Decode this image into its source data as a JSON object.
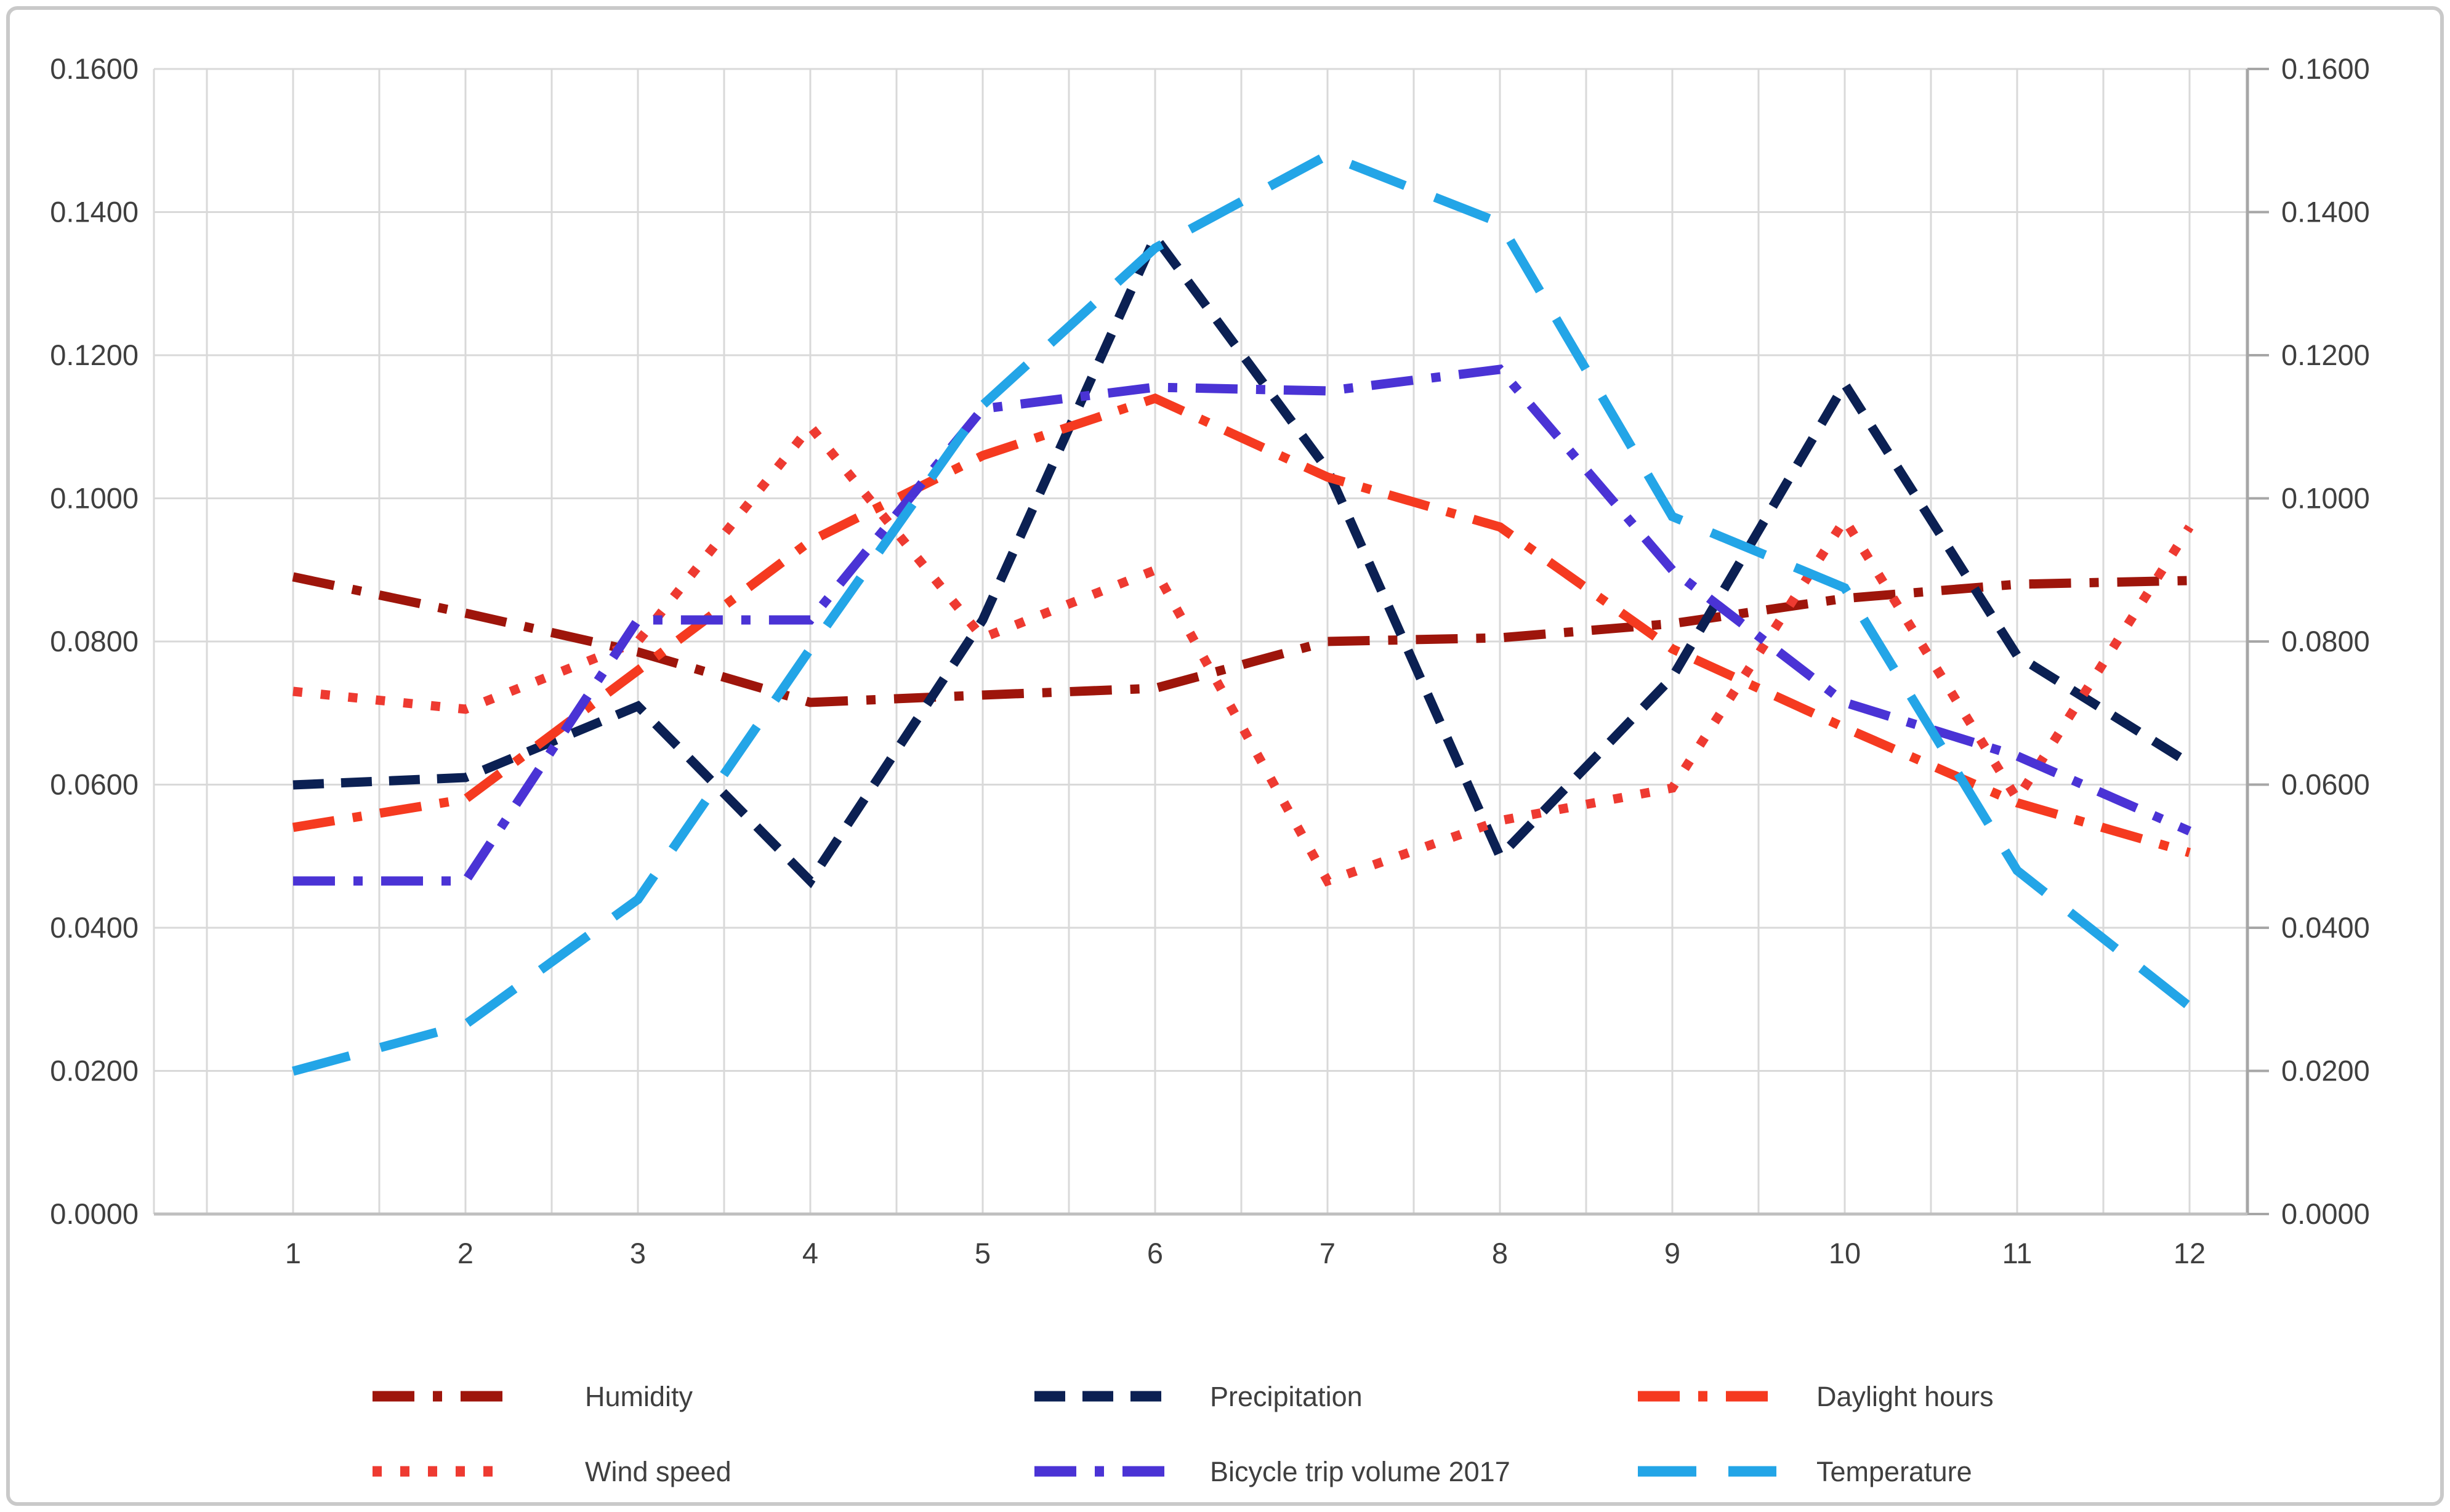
{
  "chart_data": {
    "type": "line",
    "title": "",
    "xlabel": "",
    "ylabel": "",
    "x": [
      1,
      2,
      3,
      4,
      5,
      6,
      7,
      8,
      9,
      10,
      11,
      12
    ],
    "x_tick_labels": [
      "1",
      "2",
      "3",
      "4",
      "5",
      "6",
      "7",
      "8",
      "9",
      "10",
      "11",
      "12"
    ],
    "y_axis": {
      "min": 0.0,
      "max": 0.16,
      "tick_step": 0.02,
      "tick_labels": [
        "0.0000",
        "0.0200",
        "0.0400",
        "0.0600",
        "0.0800",
        "0.1000",
        "0.1200",
        "0.1400",
        "0.1600"
      ],
      "sides": [
        "left",
        "right"
      ],
      "grid": true
    },
    "minor_vertical_grid_per_month": 2,
    "series": [
      {
        "name": "Humidity",
        "color": "#9e150b",
        "dash_style": "long-dash-dot",
        "values": [
          0.089,
          0.084,
          0.0785,
          0.0715,
          0.0725,
          0.0735,
          0.08,
          0.0805,
          0.0825,
          0.086,
          0.088,
          0.0885
        ]
      },
      {
        "name": "Precipitation",
        "color": "#0b2053",
        "dash_style": "dash",
        "values": [
          0.06,
          0.061,
          0.071,
          0.0465,
          0.083,
          0.1365,
          0.104,
          0.05,
          0.075,
          0.116,
          0.078,
          0.063
        ]
      },
      {
        "name": "Daylight hours",
        "color": "#f53a20",
        "dash_style": "long-dash-dot",
        "values": [
          0.054,
          0.058,
          0.076,
          0.094,
          0.106,
          0.114,
          0.103,
          0.096,
          0.079,
          0.068,
          0.0575,
          0.0505
        ]
      },
      {
        "name": "Wind speed",
        "color": "#ee3a31",
        "dash_style": "dot",
        "values": [
          0.073,
          0.0705,
          0.08,
          0.11,
          0.0805,
          0.09,
          0.0465,
          0.055,
          0.0595,
          0.097,
          0.058,
          0.096
        ]
      },
      {
        "name": "Bicycle trip volume 2017",
        "color": "#4a33d5",
        "dash_style": "long-dash-dot",
        "values": [
          0.0465,
          0.0465,
          0.083,
          0.083,
          0.1125,
          0.1155,
          0.115,
          0.118,
          0.09,
          0.0715,
          0.064,
          0.0535
        ]
      },
      {
        "name": "Temperature",
        "color": "#23a5e7",
        "dash_style": "long-dash",
        "values": [
          0.02,
          0.0265,
          0.044,
          0.079,
          0.113,
          0.135,
          0.148,
          0.1385,
          0.0975,
          0.0875,
          0.048,
          0.029
        ]
      }
    ],
    "legend": {
      "position": "bottom",
      "rows": [
        [
          "Humidity",
          "Precipitation",
          "Daylight hours"
        ],
        [
          "Wind speed",
          "Bicycle trip volume 2017",
          "Temperature"
        ]
      ]
    },
    "grid_color": "#d9d9d9",
    "axis_line_color": "#bfbfbf"
  }
}
